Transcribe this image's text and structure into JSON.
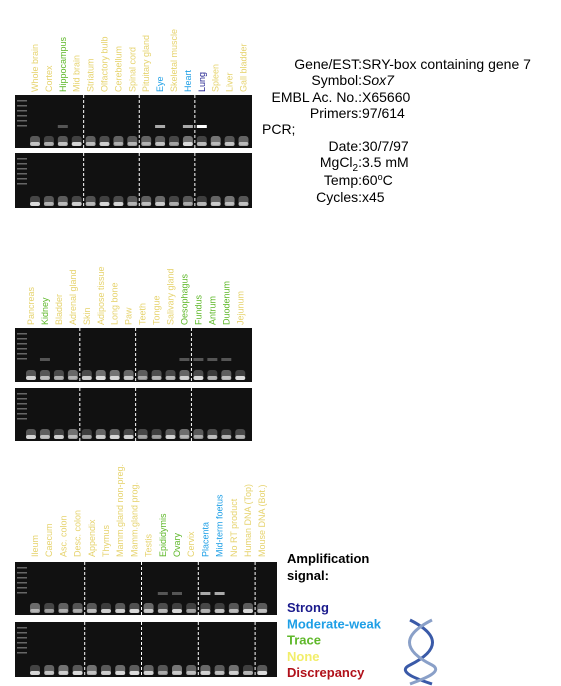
{
  "gels": [
    {
      "tissues": [
        {
          "label": "Whole brain",
          "color": "#e6d36e"
        },
        {
          "label": "Cortex",
          "color": "#e6d36e"
        },
        {
          "label": "Hippocampus",
          "color": "#5fb82a"
        },
        {
          "label": "Mid brain",
          "color": "#e6d36e"
        },
        {
          "label": "Striatum",
          "color": "#e6d36e"
        },
        {
          "label": "Olfactory bulb",
          "color": "#e6d36e"
        },
        {
          "label": "Cerebellum",
          "color": "#e6d36e"
        },
        {
          "label": "Spinal cord",
          "color": "#e6d36e"
        },
        {
          "label": "Pituitary gland",
          "color": "#e6d36e"
        },
        {
          "label": "Eye",
          "color": "#1e9fe6"
        },
        {
          "label": "Skeletal muscle",
          "color": "#e6d36e"
        },
        {
          "label": "Heart",
          "color": "#1e9fe6"
        },
        {
          "label": "Lung",
          "color": "#1a1a8c"
        },
        {
          "label": "Spleen",
          "color": "#e6d36e"
        },
        {
          "label": "Liver",
          "color": "#e6d36e"
        },
        {
          "label": "Gall bladder",
          "color": "#e6d36e"
        }
      ]
    },
    {
      "tissues": [
        {
          "label": "Pancreas",
          "color": "#e6d36e"
        },
        {
          "label": "Kidney",
          "color": "#5fb82a"
        },
        {
          "label": "Bladder",
          "color": "#e6d36e"
        },
        {
          "label": "Adrenal gland",
          "color": "#e6d36e"
        },
        {
          "label": "Skin",
          "color": "#e6d36e"
        },
        {
          "label": "Adipose tissue",
          "color": "#e6d36e"
        },
        {
          "label": "Long bone",
          "color": "#e6d36e"
        },
        {
          "label": "Paw",
          "color": "#e6d36e"
        },
        {
          "label": "Teeth",
          "color": "#e6d36e"
        },
        {
          "label": "Tongue",
          "color": "#e6d36e"
        },
        {
          "label": "Salivary gland",
          "color": "#e6d36e"
        },
        {
          "label": "Oesophagus",
          "color": "#5fb82a"
        },
        {
          "label": "Fundus",
          "color": "#5fb82a"
        },
        {
          "label": "Antrum",
          "color": "#5fb82a"
        },
        {
          "label": "Duodenum",
          "color": "#5fb82a"
        },
        {
          "label": "Jejunum",
          "color": "#e6d36e"
        }
      ]
    },
    {
      "tissues": [
        {
          "label": "Ileum",
          "color": "#e6d36e"
        },
        {
          "label": "Caecum",
          "color": "#e6d36e"
        },
        {
          "label": "Asc. colon",
          "color": "#e6d36e"
        },
        {
          "label": "Desc. colon",
          "color": "#e6d36e"
        },
        {
          "label": "Appendix",
          "color": "#e6d36e"
        },
        {
          "label": "Thymus",
          "color": "#e6d36e"
        },
        {
          "label": "Mamm.gland non-preg.",
          "color": "#e6d36e"
        },
        {
          "label": "Mamm.gland prog.",
          "color": "#e6d36e"
        },
        {
          "label": "Testis",
          "color": "#e6d36e"
        },
        {
          "label": "Epididymis",
          "color": "#5fb82a"
        },
        {
          "label": "Ovary",
          "color": "#5fb82a"
        },
        {
          "label": "Cervix",
          "color": "#e6d36e"
        },
        {
          "label": "Placenta",
          "color": "#1e9fe6"
        },
        {
          "label": "Mid-term foetus",
          "color": "#1e9fe6"
        },
        {
          "label": "No RT product",
          "color": "#e6d36e"
        },
        {
          "label": "Human DNA (Top)",
          "color": "#e6d36e"
        },
        {
          "label": "Mouse DNA (Bot.)",
          "color": "#e6d36e"
        }
      ]
    }
  ],
  "info": {
    "gene_key": "Gene/EST:",
    "gene": "SRY-box containing gene 7",
    "symbol_key": "Symbol:",
    "symbol": "Sox7",
    "embl_key": "EMBL Ac. No.:",
    "embl": "X65660",
    "primers_key": "Primers:",
    "primers": "97/614",
    "pcr": "PCR;",
    "date_key": "Date:",
    "date": "30/7/97",
    "mgcl_key": "MgCl",
    "mgcl_sub": "2",
    "mgcl_colon": ":",
    "mgcl": "3.5 mM",
    "temp_key": "Temp:",
    "temp": "60",
    "temp_sup": "o",
    "temp_unit": "C",
    "cycles_key": "Cycles:",
    "cycles": "x45"
  },
  "legend": {
    "title_1": "Amplification",
    "title_2": "signal:",
    "items": [
      {
        "label": "Strong",
        "color": "#1a1a8c"
      },
      {
        "label": "Moderate-weak",
        "color": "#1e9fe6"
      },
      {
        "label": "Trace",
        "color": "#5fb82a"
      },
      {
        "label": "None",
        "color": "#f2ee6a"
      },
      {
        "label": "Discrepancy",
        "color": "#b0101a"
      }
    ]
  }
}
